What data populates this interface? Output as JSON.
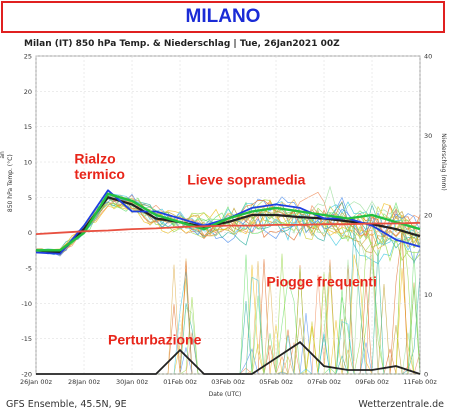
{
  "banner": {
    "title": "MILANO",
    "title_color": "#1a2bd6",
    "border_color": "#e02020"
  },
  "chart_data": {
    "type": "line",
    "title": "Milan  (IT)  850 hPa Temp. & Niederschlag | Tue, 26Jan2021 00Z",
    "xlabel": "Date (UTC)",
    "ylabel_left": "850 hPa Temp. (°C)",
    "ylabel_left_partial": "an",
    "ylabel_right": "Niederschlag (mm)",
    "ylim_left": [
      -20,
      25
    ],
    "ylim_right": [
      0,
      40
    ],
    "yticks_left": [
      "25",
      "20",
      "15",
      "10",
      "5",
      "0",
      "-5",
      "-10",
      "-15",
      "-20"
    ],
    "yticks_right": [
      "40",
      "30",
      "20",
      "10",
      "0"
    ],
    "xticks": [
      "26Jan 00z",
      "28Jan 00z",
      "30Jan 00z",
      "01Feb 00z",
      "03Feb 00z",
      "05Feb 00z",
      "07Feb 00z",
      "09Feb 00z",
      "11Feb 00z"
    ],
    "x_days": [
      0,
      1,
      2,
      3,
      4,
      5,
      6,
      7,
      8,
      9,
      10,
      11,
      12,
      13,
      14,
      15,
      16
    ],
    "series": [
      {
        "role": "ensemble mean temperature",
        "color": "#222222",
        "values": [
          -2.5,
          -2.8,
          0.5,
          5,
          4,
          2,
          1.5,
          0.8,
          1.5,
          2.5,
          2.5,
          2.2,
          2,
          1.6,
          1.2,
          0.5,
          -0.5
        ]
      },
      {
        "role": "control run temperature",
        "color": "#1f3fe0",
        "values": [
          -2.8,
          -3,
          1,
          6,
          3,
          3,
          2,
          1,
          2,
          3.5,
          4,
          3.5,
          2,
          2,
          1,
          -1,
          -2
        ]
      },
      {
        "role": "operational run temperature",
        "color": "#22c040",
        "values": [
          -2.5,
          -2.5,
          0,
          5.5,
          4.5,
          2.5,
          1.5,
          0.5,
          2,
          3,
          3.5,
          3,
          2.5,
          2,
          2.5,
          1.5,
          0.5
        ]
      },
      {
        "role": "climatology temperature",
        "color": "#e85040",
        "values": [
          -0.2,
          0,
          0.2,
          0.3,
          0.5,
          0.6,
          0.8,
          0.9,
          1.0,
          1.0,
          1.1,
          1.1,
          1.2,
          1.2,
          1.3,
          1.3,
          1.4
        ]
      }
    ],
    "precip_mean_mm": [
      0,
      0,
      0,
      0,
      0,
      0,
      3,
      0,
      0,
      0,
      2,
      4,
      1,
      0.5,
      0.5,
      1,
      0
    ],
    "annotations": [
      {
        "text": "Rialzo",
        "anchor_day": 1.6,
        "anchor_temp": 9.8
      },
      {
        "text": "termico",
        "anchor_day": 1.6,
        "anchor_temp": 7.6
      },
      {
        "text": "Lieve sopramedia",
        "anchor_day": 6.3,
        "anchor_temp": 6.8
      },
      {
        "text": "Piogge frequenti",
        "anchor_day": 9.6,
        "anchor_temp": -7.6
      },
      {
        "text": "Perturbazione",
        "anchor_day": 3.0,
        "anchor_temp": -15.8
      }
    ]
  },
  "footer": {
    "left": "GFS Ensemble, 45.5N, 9E",
    "right": "Wetterzentrale.de"
  }
}
